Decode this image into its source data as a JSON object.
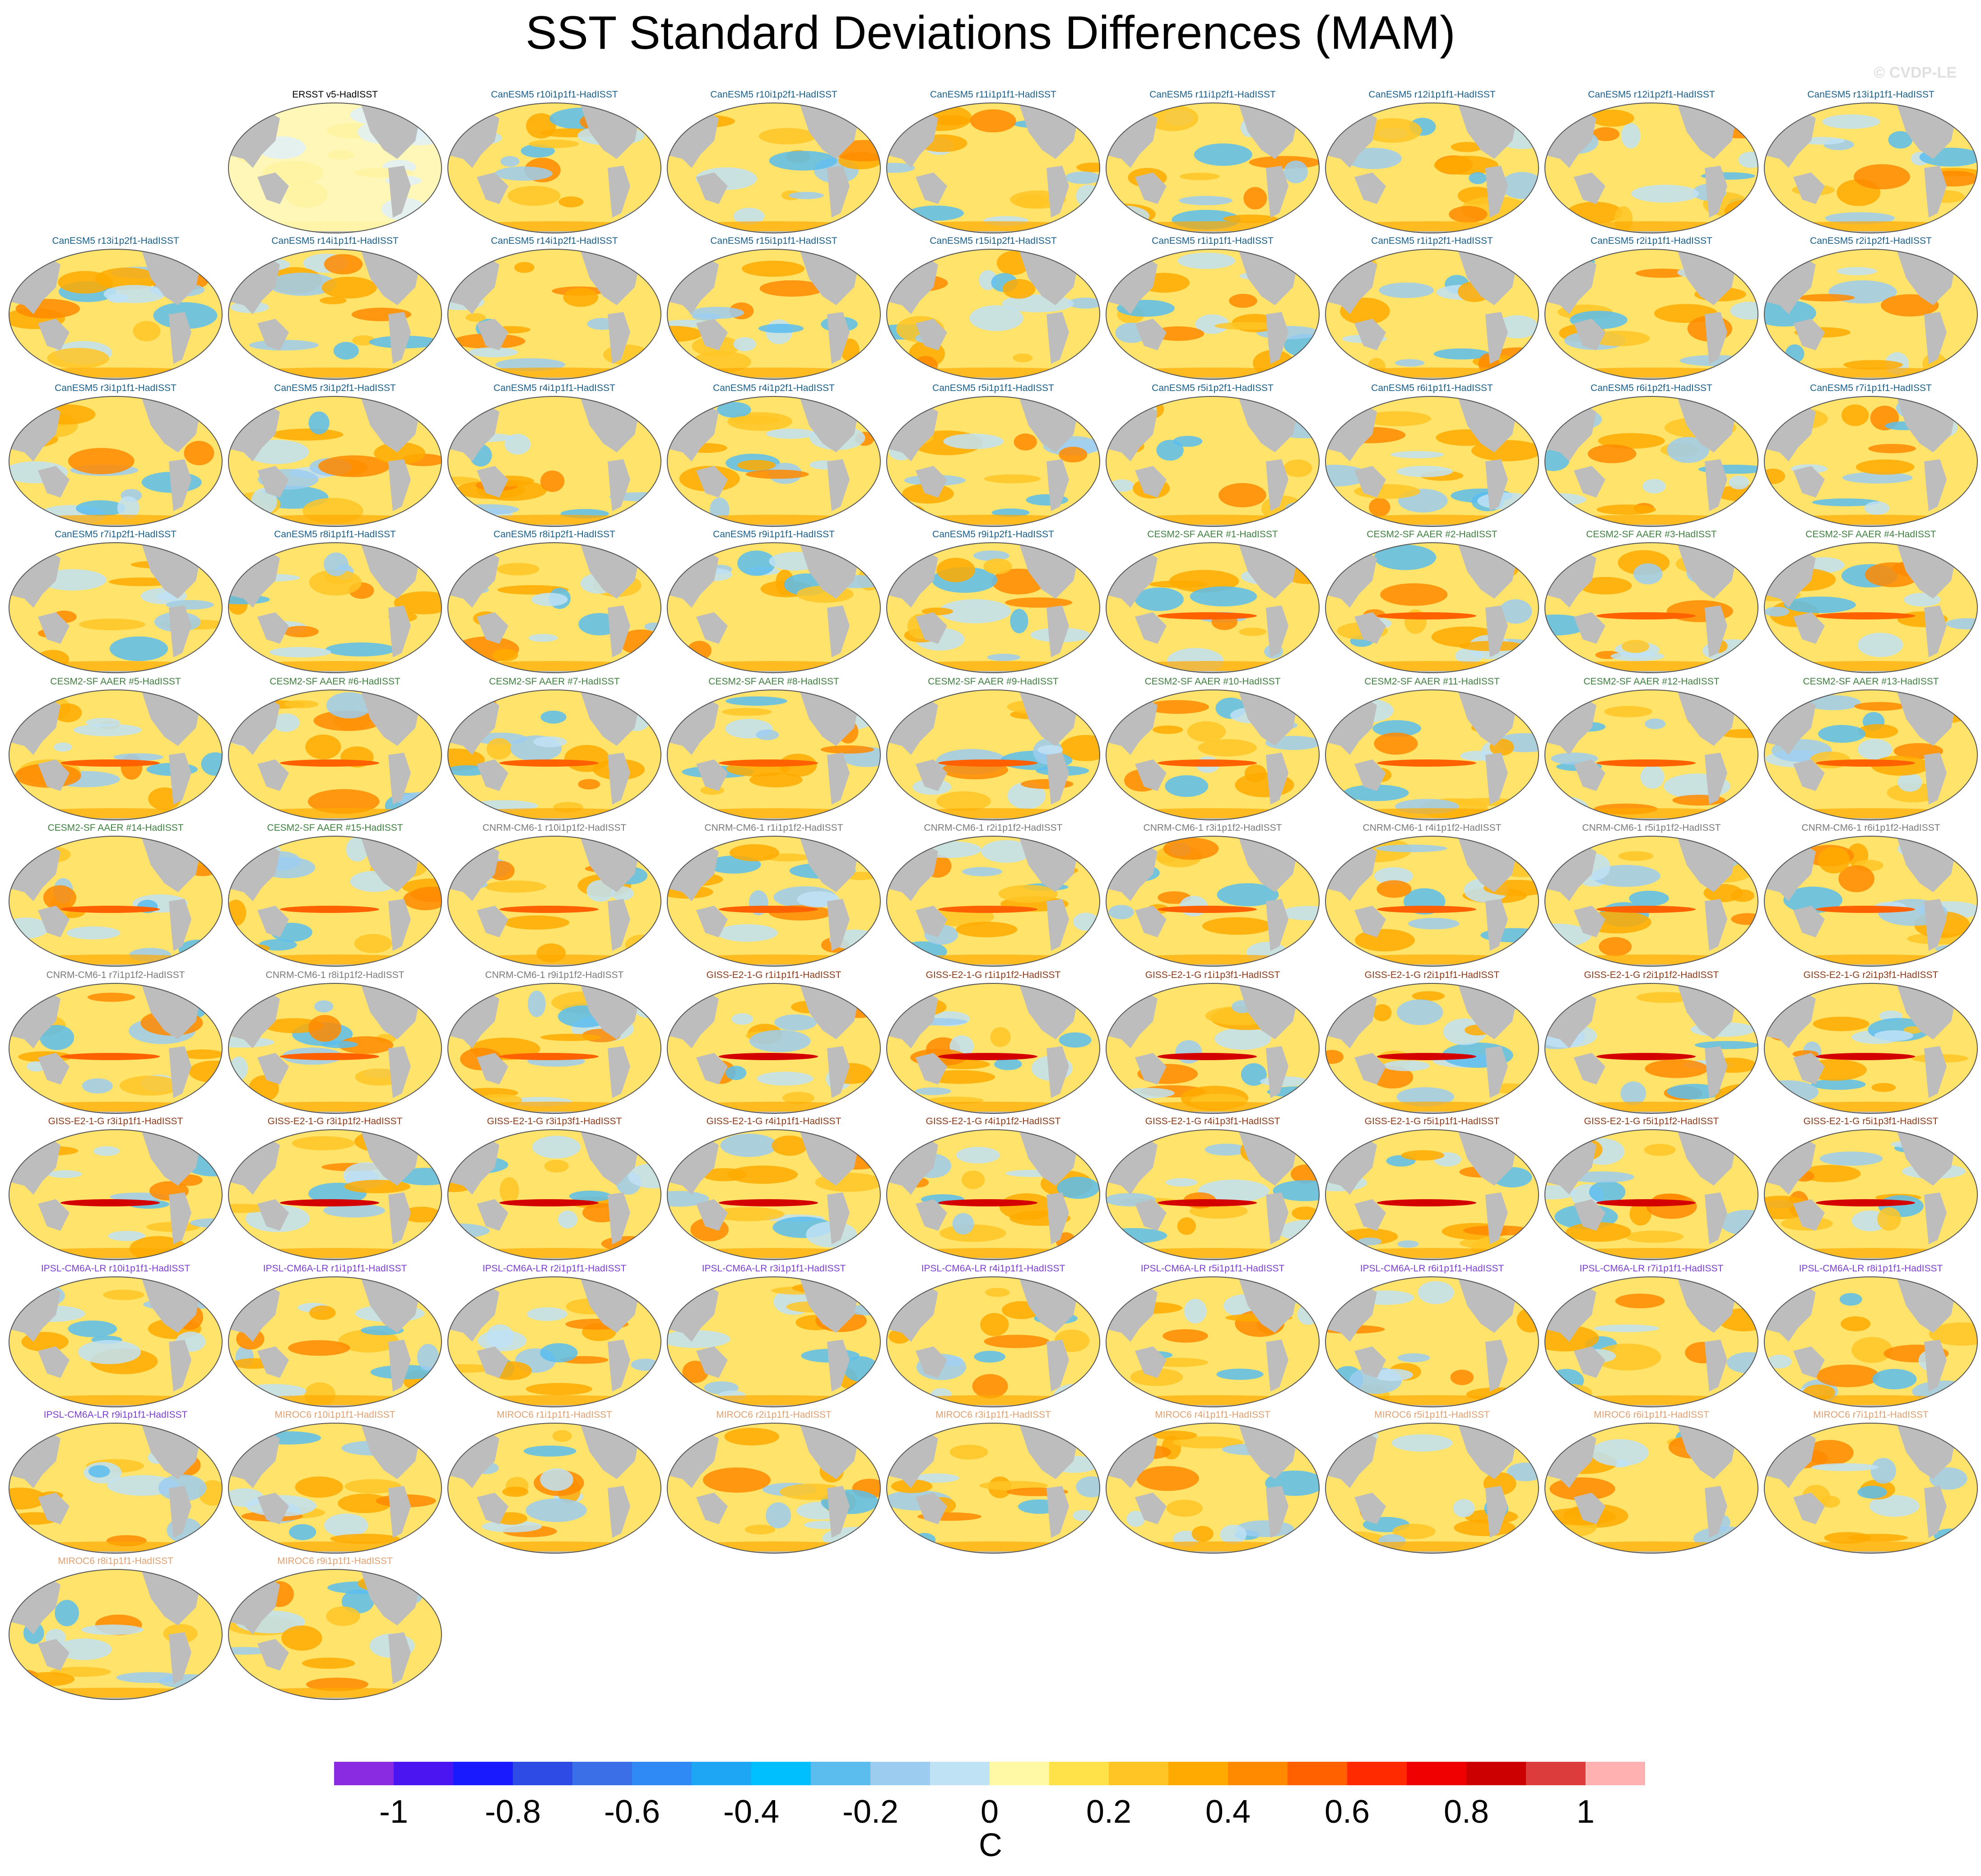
{
  "title": "SST Standard Deviations Differences (MAM)",
  "credit": "© CVDP-LE",
  "colors": {
    "land": "#bdbdbd",
    "CanESM5": "#1a5e8a",
    "CESM2-SF AAER": "#3f7f3f",
    "CNRM-CM6-1": "#7a7a7a",
    "GISS-E2-1-G": "#8b3a1a",
    "IPSL-CM6A-LR": "#7b3fd1",
    "MIROC6": "#e0a070",
    "ERSST v5": "#000000"
  },
  "panels": [
    {
      "label": "ERSST v5-HadISST",
      "group": "ERSST v5"
    },
    {
      "label": "CanESM5 r10i1p1f1-HadISST",
      "group": "CanESM5"
    },
    {
      "label": "CanESM5 r10i1p2f1-HadISST",
      "group": "CanESM5"
    },
    {
      "label": "CanESM5 r11i1p1f1-HadISST",
      "group": "CanESM5"
    },
    {
      "label": "CanESM5 r11i1p2f1-HadISST",
      "group": "CanESM5"
    },
    {
      "label": "CanESM5 r12i1p1f1-HadISST",
      "group": "CanESM5"
    },
    {
      "label": "CanESM5 r12i1p2f1-HadISST",
      "group": "CanESM5"
    },
    {
      "label": "CanESM5 r13i1p1f1-HadISST",
      "group": "CanESM5"
    },
    {
      "label": "CanESM5 r13i1p2f1-HadISST",
      "group": "CanESM5"
    },
    {
      "label": "CanESM5 r14i1p1f1-HadISST",
      "group": "CanESM5"
    },
    {
      "label": "CanESM5 r14i1p2f1-HadISST",
      "group": "CanESM5"
    },
    {
      "label": "CanESM5 r15i1p1f1-HadISST",
      "group": "CanESM5"
    },
    {
      "label": "CanESM5 r15i1p2f1-HadISST",
      "group": "CanESM5"
    },
    {
      "label": "CanESM5 r1i1p1f1-HadISST",
      "group": "CanESM5"
    },
    {
      "label": "CanESM5 r1i1p2f1-HadISST",
      "group": "CanESM5"
    },
    {
      "label": "CanESM5 r2i1p1f1-HadISST",
      "group": "CanESM5"
    },
    {
      "label": "CanESM5 r2i1p2f1-HadISST",
      "group": "CanESM5"
    },
    {
      "label": "CanESM5 r3i1p1f1-HadISST",
      "group": "CanESM5"
    },
    {
      "label": "CanESM5 r3i1p2f1-HadISST",
      "group": "CanESM5"
    },
    {
      "label": "CanESM5 r4i1p1f1-HadISST",
      "group": "CanESM5"
    },
    {
      "label": "CanESM5 r4i1p2f1-HadISST",
      "group": "CanESM5"
    },
    {
      "label": "CanESM5 r5i1p1f1-HadISST",
      "group": "CanESM5"
    },
    {
      "label": "CanESM5 r5i1p2f1-HadISST",
      "group": "CanESM5"
    },
    {
      "label": "CanESM5 r6i1p1f1-HadISST",
      "group": "CanESM5"
    },
    {
      "label": "CanESM5 r6i1p2f1-HadISST",
      "group": "CanESM5"
    },
    {
      "label": "CanESM5 r7i1p1f1-HadISST",
      "group": "CanESM5"
    },
    {
      "label": "CanESM5 r7i1p2f1-HadISST",
      "group": "CanESM5"
    },
    {
      "label": "CanESM5 r8i1p1f1-HadISST",
      "group": "CanESM5"
    },
    {
      "label": "CanESM5 r8i1p2f1-HadISST",
      "group": "CanESM5"
    },
    {
      "label": "CanESM5 r9i1p1f1-HadISST",
      "group": "CanESM5"
    },
    {
      "label": "CanESM5 r9i1p2f1-HadISST",
      "group": "CanESM5"
    },
    {
      "label": "CESM2-SF AAER #1-HadISST",
      "group": "CESM2-SF AAER"
    },
    {
      "label": "CESM2-SF AAER #2-HadISST",
      "group": "CESM2-SF AAER"
    },
    {
      "label": "CESM2-SF AAER #3-HadISST",
      "group": "CESM2-SF AAER"
    },
    {
      "label": "CESM2-SF AAER #4-HadISST",
      "group": "CESM2-SF AAER"
    },
    {
      "label": "CESM2-SF AAER #5-HadISST",
      "group": "CESM2-SF AAER"
    },
    {
      "label": "CESM2-SF AAER #6-HadISST",
      "group": "CESM2-SF AAER"
    },
    {
      "label": "CESM2-SF AAER #7-HadISST",
      "group": "CESM2-SF AAER"
    },
    {
      "label": "CESM2-SF AAER #8-HadISST",
      "group": "CESM2-SF AAER"
    },
    {
      "label": "CESM2-SF AAER #9-HadISST",
      "group": "CESM2-SF AAER"
    },
    {
      "label": "CESM2-SF AAER #10-HadISST",
      "group": "CESM2-SF AAER"
    },
    {
      "label": "CESM2-SF AAER #11-HadISST",
      "group": "CESM2-SF AAER"
    },
    {
      "label": "CESM2-SF AAER #12-HadISST",
      "group": "CESM2-SF AAER"
    },
    {
      "label": "CESM2-SF AAER #13-HadISST",
      "group": "CESM2-SF AAER"
    },
    {
      "label": "CESM2-SF AAER #14-HadISST",
      "group": "CESM2-SF AAER"
    },
    {
      "label": "CESM2-SF AAER #15-HadISST",
      "group": "CESM2-SF AAER"
    },
    {
      "label": "CNRM-CM6-1 r10i1p1f2-HadISST",
      "group": "CNRM-CM6-1"
    },
    {
      "label": "CNRM-CM6-1 r1i1p1f2-HadISST",
      "group": "CNRM-CM6-1"
    },
    {
      "label": "CNRM-CM6-1 r2i1p1f2-HadISST",
      "group": "CNRM-CM6-1"
    },
    {
      "label": "CNRM-CM6-1 r3i1p1f2-HadISST",
      "group": "CNRM-CM6-1"
    },
    {
      "label": "CNRM-CM6-1 r4i1p1f2-HadISST",
      "group": "CNRM-CM6-1"
    },
    {
      "label": "CNRM-CM6-1 r5i1p1f2-HadISST",
      "group": "CNRM-CM6-1"
    },
    {
      "label": "CNRM-CM6-1 r6i1p1f2-HadISST",
      "group": "CNRM-CM6-1"
    },
    {
      "label": "CNRM-CM6-1 r7i1p1f2-HadISST",
      "group": "CNRM-CM6-1"
    },
    {
      "label": "CNRM-CM6-1 r8i1p1f2-HadISST",
      "group": "CNRM-CM6-1"
    },
    {
      "label": "CNRM-CM6-1 r9i1p1f2-HadISST",
      "group": "CNRM-CM6-1"
    },
    {
      "label": "GISS-E2-1-G r1i1p1f1-HadISST",
      "group": "GISS-E2-1-G"
    },
    {
      "label": "GISS-E2-1-G r1i1p1f2-HadISST",
      "group": "GISS-E2-1-G"
    },
    {
      "label": "GISS-E2-1-G r1i1p3f1-HadISST",
      "group": "GISS-E2-1-G"
    },
    {
      "label": "GISS-E2-1-G r2i1p1f1-HadISST",
      "group": "GISS-E2-1-G"
    },
    {
      "label": "GISS-E2-1-G r2i1p1f2-HadISST",
      "group": "GISS-E2-1-G"
    },
    {
      "label": "GISS-E2-1-G r2i1p3f1-HadISST",
      "group": "GISS-E2-1-G"
    },
    {
      "label": "GISS-E2-1-G r3i1p1f1-HadISST",
      "group": "GISS-E2-1-G"
    },
    {
      "label": "GISS-E2-1-G r3i1p1f2-HadISST",
      "group": "GISS-E2-1-G"
    },
    {
      "label": "GISS-E2-1-G r3i1p3f1-HadISST",
      "group": "GISS-E2-1-G"
    },
    {
      "label": "GISS-E2-1-G r4i1p1f1-HadISST",
      "group": "GISS-E2-1-G"
    },
    {
      "label": "GISS-E2-1-G r4i1p1f2-HadISST",
      "group": "GISS-E2-1-G"
    },
    {
      "label": "GISS-E2-1-G r4i1p3f1-HadISST",
      "group": "GISS-E2-1-G"
    },
    {
      "label": "GISS-E2-1-G r5i1p1f1-HadISST",
      "group": "GISS-E2-1-G"
    },
    {
      "label": "GISS-E2-1-G r5i1p1f2-HadISST",
      "group": "GISS-E2-1-G"
    },
    {
      "label": "GISS-E2-1-G r5i1p3f1-HadISST",
      "group": "GISS-E2-1-G"
    },
    {
      "label": "IPSL-CM6A-LR r10i1p1f1-HadISST",
      "group": "IPSL-CM6A-LR"
    },
    {
      "label": "IPSL-CM6A-LR r1i1p1f1-HadISST",
      "group": "IPSL-CM6A-LR"
    },
    {
      "label": "IPSL-CM6A-LR r2i1p1f1-HadISST",
      "group": "IPSL-CM6A-LR"
    },
    {
      "label": "IPSL-CM6A-LR r3i1p1f1-HadISST",
      "group": "IPSL-CM6A-LR"
    },
    {
      "label": "IPSL-CM6A-LR r4i1p1f1-HadISST",
      "group": "IPSL-CM6A-LR"
    },
    {
      "label": "IPSL-CM6A-LR r5i1p1f1-HadISST",
      "group": "IPSL-CM6A-LR"
    },
    {
      "label": "IPSL-CM6A-LR r6i1p1f1-HadISST",
      "group": "IPSL-CM6A-LR"
    },
    {
      "label": "IPSL-CM6A-LR r7i1p1f1-HadISST",
      "group": "IPSL-CM6A-LR"
    },
    {
      "label": "IPSL-CM6A-LR r8i1p1f1-HadISST",
      "group": "IPSL-CM6A-LR"
    },
    {
      "label": "IPSL-CM6A-LR r9i1p1f1-HadISST",
      "group": "IPSL-CM6A-LR"
    },
    {
      "label": "MIROC6 r10i1p1f1-HadISST",
      "group": "MIROC6"
    },
    {
      "label": "MIROC6 r1i1p1f1-HadISST",
      "group": "MIROC6"
    },
    {
      "label": "MIROC6 r2i1p1f1-HadISST",
      "group": "MIROC6"
    },
    {
      "label": "MIROC6 r3i1p1f1-HadISST",
      "group": "MIROC6"
    },
    {
      "label": "MIROC6 r4i1p1f1-HadISST",
      "group": "MIROC6"
    },
    {
      "label": "MIROC6 r5i1p1f1-HadISST",
      "group": "MIROC6"
    },
    {
      "label": "MIROC6 r6i1p1f1-HadISST",
      "group": "MIROC6"
    },
    {
      "label": "MIROC6 r7i1p1f1-HadISST",
      "group": "MIROC6"
    },
    {
      "label": "MIROC6 r8i1p1f1-HadISST",
      "group": "MIROC6"
    },
    {
      "label": "MIROC6 r9i1p1f1-HadISST",
      "group": "MIROC6"
    }
  ],
  "colorbar": {
    "colors": [
      "#8a2be2",
      "#4b15f2",
      "#1a1aff",
      "#2e4be6",
      "#3a6fe8",
      "#2f8af5",
      "#1ea6f5",
      "#00bfff",
      "#5bbdee",
      "#9ccdf0",
      "#bfe2f5",
      "#fff9a6",
      "#ffe24a",
      "#ffc524",
      "#ffaa00",
      "#ff8a00",
      "#ff6000",
      "#ff2a00",
      "#f00000",
      "#cc0000",
      "#dc3c3c",
      "#ffb0b0"
    ],
    "tick_labels": [
      "-1",
      "-0.8",
      "-0.6",
      "-0.4",
      "-0.2",
      "0",
      "0.2",
      "0.4",
      "0.6",
      "0.8",
      "1"
    ],
    "tick_values": [
      -1,
      -0.8,
      -0.6,
      -0.4,
      -0.2,
      0,
      0.2,
      0.4,
      0.6,
      0.8,
      1
    ],
    "range": [
      -1.1,
      1.1
    ],
    "units": "C"
  }
}
